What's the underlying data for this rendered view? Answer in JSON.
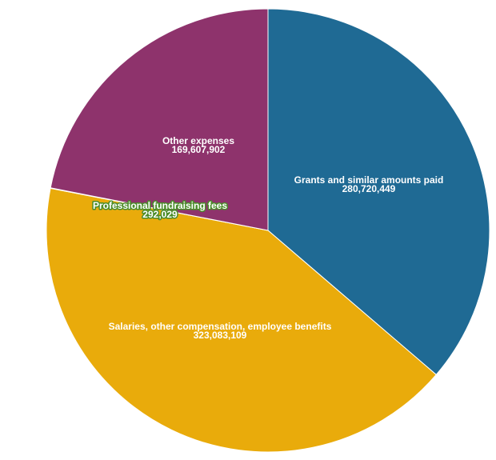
{
  "chart_data": {
    "type": "pie",
    "title": "",
    "start_angle_deg": 0,
    "direction": "clockwise",
    "slices": [
      {
        "label": "Grants and similar amounts paid",
        "value": 280720449,
        "value_text": "280,720,449",
        "color": "#1f6a94"
      },
      {
        "label": "Salaries, other compensation, employee benefits",
        "value": 323083109,
        "value_text": "323,083,109",
        "color": "#e9ab0b"
      },
      {
        "label": "Professional fundraising fees",
        "value": 292029,
        "value_text": "292,029",
        "color": "#e9ab0b",
        "halo_color": "#4a8c2a"
      },
      {
        "label": "Other expenses",
        "value": 169607902,
        "value_text": "169,607,902",
        "color": "#8e336c"
      }
    ]
  }
}
